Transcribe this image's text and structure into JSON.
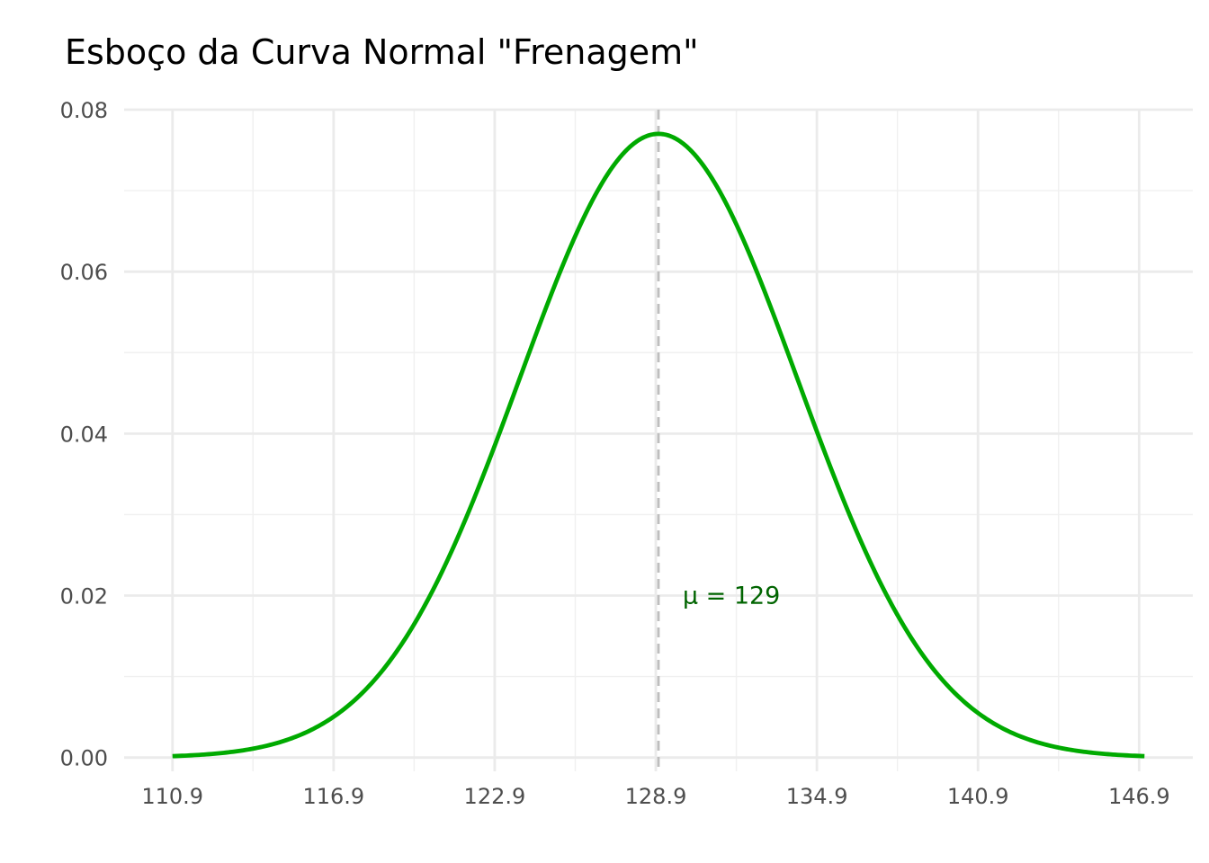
{
  "chart_data": {
    "type": "line",
    "title": "Esboço da Curva Normal \"Frenagem\"",
    "xlabel": "",
    "ylabel": "",
    "distribution": {
      "mean": 129,
      "sd": 5.18
    },
    "x_range": [
      110.9,
      147.1
    ],
    "xlim": [
      109.1,
      148.9
    ],
    "ylim": [
      -0.0017,
      0.08
    ],
    "x_ticks": [
      "110.9",
      "116.9",
      "122.9",
      "128.9",
      "134.9",
      "140.9",
      "146.9"
    ],
    "y_ticks": [
      "0.00",
      "0.02",
      "0.04",
      "0.06",
      "0.08"
    ],
    "series": [
      {
        "color": "#00AA00",
        "x": [
          110.9,
          112.9,
          114.9,
          116.9,
          118.9,
          120.9,
          122.9,
          124.9,
          126.9,
          128.9,
          129.0,
          130.9,
          132.9,
          134.9,
          136.9,
          138.9,
          140.9,
          142.9,
          144.9,
          146.9
        ],
        "y": [
          0.0002,
          0.00061,
          0.00189,
          0.00507,
          0.01174,
          0.02354,
          0.03921,
          0.05668,
          0.0702,
          0.077,
          0.07702,
          0.0732,
          0.05898,
          0.0404,
          0.02352,
          0.01182,
          0.00506,
          0.00185,
          0.00058,
          0.00015
        ]
      }
    ],
    "reference_line": {
      "x": 129,
      "style": "dashed",
      "color": "#BEBEBE"
    },
    "annotation": {
      "text": "μ = 129",
      "x": 129.9,
      "y": 0.02,
      "color": "#006400"
    },
    "grid": true,
    "legend": "none"
  }
}
